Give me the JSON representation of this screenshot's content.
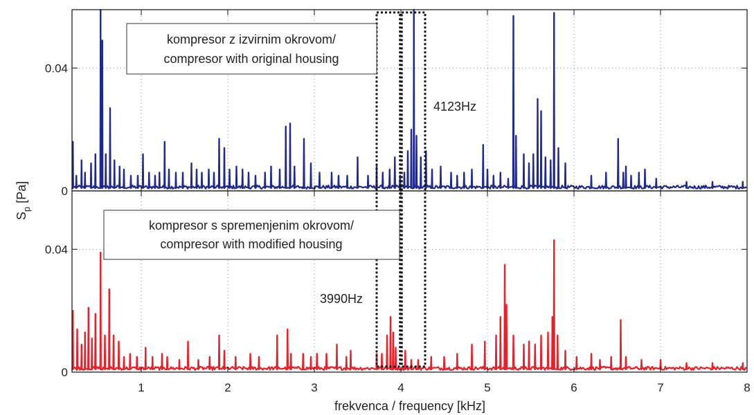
{
  "chart_data": {
    "type": "line",
    "xlabel": "frekvenca / frequency [kHz]",
    "ylabel": "S",
    "ylabel_sub": "p",
    "ylabel_unit": " [Pa]",
    "xlim": [
      0.2,
      8.0
    ],
    "xticks": [
      1,
      2,
      3,
      4,
      5,
      6,
      7,
      8
    ],
    "grid": true,
    "panels": [
      {
        "name": "top",
        "color": "#1f2a8c",
        "ylim": [
          0,
          0.059
        ],
        "yticks": [
          0,
          0.04
        ],
        "yticklabels": [
          "0",
          "0.04"
        ],
        "legend_lines": [
          "kompresor z izvirnim okrovom/",
          "compresor with original housing"
        ],
        "annotation": "4123Hz",
        "peaks": [
          [
            0.21,
            0.016
          ],
          [
            0.25,
            0.005
          ],
          [
            0.31,
            0.01
          ],
          [
            0.35,
            0.006
          ],
          [
            0.42,
            0.009
          ],
          [
            0.47,
            0.012
          ],
          [
            0.53,
            0.064
          ],
          [
            0.55,
            0.049
          ],
          [
            0.59,
            0.012
          ],
          [
            0.64,
            0.027
          ],
          [
            0.69,
            0.01
          ],
          [
            0.75,
            0.008
          ],
          [
            0.8,
            0.007
          ],
          [
            0.88,
            0.005
          ],
          [
            0.96,
            0.005
          ],
          [
            1.02,
            0.012
          ],
          [
            1.09,
            0.006
          ],
          [
            1.16,
            0.005
          ],
          [
            1.21,
            0.006
          ],
          [
            1.27,
            0.016
          ],
          [
            1.32,
            0.007
          ],
          [
            1.4,
            0.006
          ],
          [
            1.48,
            0.006
          ],
          [
            1.58,
            0.009
          ],
          [
            1.64,
            0.007
          ],
          [
            1.7,
            0.006
          ],
          [
            1.78,
            0.007
          ],
          [
            1.84,
            0.006
          ],
          [
            1.9,
            0.017
          ],
          [
            1.96,
            0.014
          ],
          [
            2.02,
            0.007
          ],
          [
            2.1,
            0.008
          ],
          [
            2.17,
            0.007
          ],
          [
            2.24,
            0.006
          ],
          [
            2.32,
            0.005
          ],
          [
            2.43,
            0.006
          ],
          [
            2.5,
            0.008
          ],
          [
            2.6,
            0.007
          ],
          [
            2.67,
            0.021
          ],
          [
            2.72,
            0.022
          ],
          [
            2.77,
            0.008
          ],
          [
            2.88,
            0.017
          ],
          [
            2.96,
            0.009
          ],
          [
            3.06,
            0.006
          ],
          [
            3.2,
            0.006
          ],
          [
            3.28,
            0.005
          ],
          [
            3.38,
            0.005
          ],
          [
            3.5,
            0.011
          ],
          [
            3.62,
            0.005
          ],
          [
            3.72,
            0.008
          ],
          [
            3.79,
            0.006
          ],
          [
            3.87,
            0.007
          ],
          [
            3.93,
            0.011
          ],
          [
            3.99,
            0.005
          ],
          [
            4.04,
            0.006
          ],
          [
            4.08,
            0.013
          ],
          [
            4.12,
            0.02
          ],
          [
            4.15,
            0.061
          ],
          [
            4.18,
            0.018
          ],
          [
            4.23,
            0.011
          ],
          [
            4.29,
            0.013
          ],
          [
            4.36,
            0.007
          ],
          [
            4.46,
            0.008
          ],
          [
            4.58,
            0.006
          ],
          [
            4.65,
            0.005
          ],
          [
            4.73,
            0.006
          ],
          [
            4.82,
            0.007
          ],
          [
            4.95,
            0.015
          ],
          [
            5.0,
            0.007
          ],
          [
            5.07,
            0.005
          ],
          [
            5.15,
            0.006
          ],
          [
            5.24,
            0.004
          ],
          [
            5.3,
            0.057
          ],
          [
            5.33,
            0.018
          ],
          [
            5.42,
            0.012
          ],
          [
            5.48,
            0.009
          ],
          [
            5.53,
            0.012
          ],
          [
            5.58,
            0.03
          ],
          [
            5.62,
            0.026
          ],
          [
            5.67,
            0.011
          ],
          [
            5.73,
            0.01
          ],
          [
            5.77,
            0.058
          ],
          [
            5.82,
            0.014
          ],
          [
            5.9,
            0.009
          ],
          [
            6.2,
            0.005
          ],
          [
            6.37,
            0.006
          ],
          [
            6.51,
            0.017
          ],
          [
            6.57,
            0.006
          ],
          [
            6.6,
            0.008
          ],
          [
            6.66,
            0.005
          ],
          [
            6.75,
            0.006
          ],
          [
            6.82,
            0.007
          ],
          [
            6.95,
            0.004
          ],
          [
            7.3,
            0.003
          ],
          [
            7.6,
            0.003
          ],
          [
            7.95,
            0.003
          ]
        ]
      },
      {
        "name": "bottom",
        "color": "#e8202a",
        "ylim": [
          0,
          0.059
        ],
        "yticks": [
          0,
          0.04
        ],
        "yticklabels": [
          "0",
          "0.04"
        ],
        "legend_lines": [
          "kompresor s spremenjenim okrovom/",
          "compresor with modified housing"
        ],
        "annotation": "3990Hz",
        "peaks": [
          [
            0.21,
            0.02
          ],
          [
            0.26,
            0.014
          ],
          [
            0.31,
            0.009
          ],
          [
            0.35,
            0.013
          ],
          [
            0.39,
            0.021
          ],
          [
            0.43,
            0.011
          ],
          [
            0.47,
            0.019
          ],
          [
            0.53,
            0.039
          ],
          [
            0.58,
            0.012
          ],
          [
            0.63,
            0.027
          ],
          [
            0.68,
            0.012
          ],
          [
            0.74,
            0.01
          ],
          [
            0.8,
            0.005
          ],
          [
            0.87,
            0.006
          ],
          [
            0.95,
            0.005
          ],
          [
            1.05,
            0.008
          ],
          [
            1.13,
            0.005
          ],
          [
            1.24,
            0.006
          ],
          [
            1.3,
            0.005
          ],
          [
            1.44,
            0.004
          ],
          [
            1.54,
            0.01
          ],
          [
            1.66,
            0.004
          ],
          [
            1.79,
            0.005
          ],
          [
            1.9,
            0.012
          ],
          [
            1.96,
            0.007
          ],
          [
            2.09,
            0.005
          ],
          [
            2.26,
            0.006
          ],
          [
            2.36,
            0.005
          ],
          [
            2.57,
            0.012
          ],
          [
            2.69,
            0.014
          ],
          [
            2.73,
            0.006
          ],
          [
            2.87,
            0.006
          ],
          [
            2.96,
            0.005
          ],
          [
            3.03,
            0.006
          ],
          [
            3.14,
            0.006
          ],
          [
            3.26,
            0.009
          ],
          [
            3.37,
            0.005
          ],
          [
            3.42,
            0.007
          ],
          [
            3.72,
            0.006
          ],
          [
            3.78,
            0.006
          ],
          [
            3.84,
            0.012
          ],
          [
            3.88,
            0.018
          ],
          [
            3.91,
            0.013
          ],
          [
            3.94,
            0.008
          ],
          [
            4.05,
            0.007
          ],
          [
            4.12,
            0.004
          ],
          [
            4.2,
            0.004
          ],
          [
            4.35,
            0.005
          ],
          [
            4.5,
            0.005
          ],
          [
            4.65,
            0.006
          ],
          [
            4.82,
            0.009
          ],
          [
            4.97,
            0.01
          ],
          [
            5.1,
            0.012
          ],
          [
            5.15,
            0.018
          ],
          [
            5.2,
            0.035
          ],
          [
            5.22,
            0.022
          ],
          [
            5.3,
            0.012
          ],
          [
            5.42,
            0.009
          ],
          [
            5.48,
            0.01
          ],
          [
            5.55,
            0.009
          ],
          [
            5.62,
            0.012
          ],
          [
            5.7,
            0.013
          ],
          [
            5.75,
            0.018
          ],
          [
            5.77,
            0.043
          ],
          [
            5.81,
            0.012
          ],
          [
            5.9,
            0.007
          ],
          [
            6.03,
            0.005
          ],
          [
            6.2,
            0.006
          ],
          [
            6.3,
            0.004
          ],
          [
            6.43,
            0.005
          ],
          [
            6.54,
            0.017
          ],
          [
            6.6,
            0.005
          ],
          [
            6.78,
            0.004
          ],
          [
            7.0,
            0.004
          ],
          [
            7.3,
            0.003
          ],
          [
            7.6,
            0.003
          ],
          [
            7.95,
            0.003
          ]
        ]
      }
    ],
    "highlight_boxes": [
      {
        "x": [
          3.72,
          3.99
        ],
        "panels": "both"
      },
      {
        "x": [
          4.01,
          4.28
        ],
        "panels": "both"
      }
    ]
  }
}
